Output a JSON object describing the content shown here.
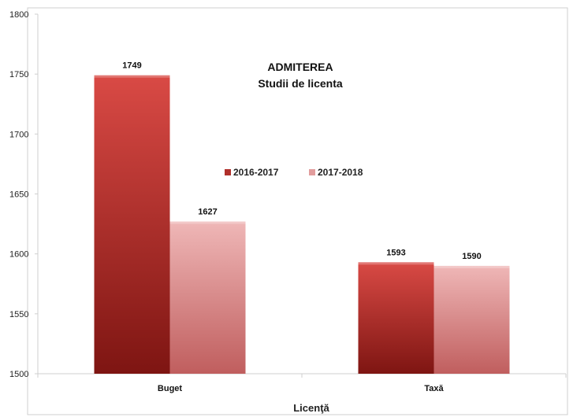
{
  "chart_data": {
    "type": "bar",
    "title": "ADMITEREA",
    "subtitle": "Studii de licenta",
    "xlabel": "Licenţă",
    "ylabel": "",
    "categories": [
      "Buget",
      "Taxă"
    ],
    "series": [
      {
        "name": "2016-2017",
        "values": [
          1749,
          1593
        ]
      },
      {
        "name": "2017-2018",
        "values": [
          1627,
          1590
        ]
      }
    ],
    "ylim": [
      1500,
      1800
    ],
    "yticks": [
      1500,
      1550,
      1600,
      1650,
      1700,
      1750,
      1800
    ],
    "legend_position": "center",
    "grid": false,
    "colors": {
      "series_0_top": "#d94a45",
      "series_0_bottom": "#7e1512",
      "series_1_top": "#efb7b7",
      "series_1_bottom": "#c05e5e",
      "axis": "#cfcfcf"
    }
  }
}
